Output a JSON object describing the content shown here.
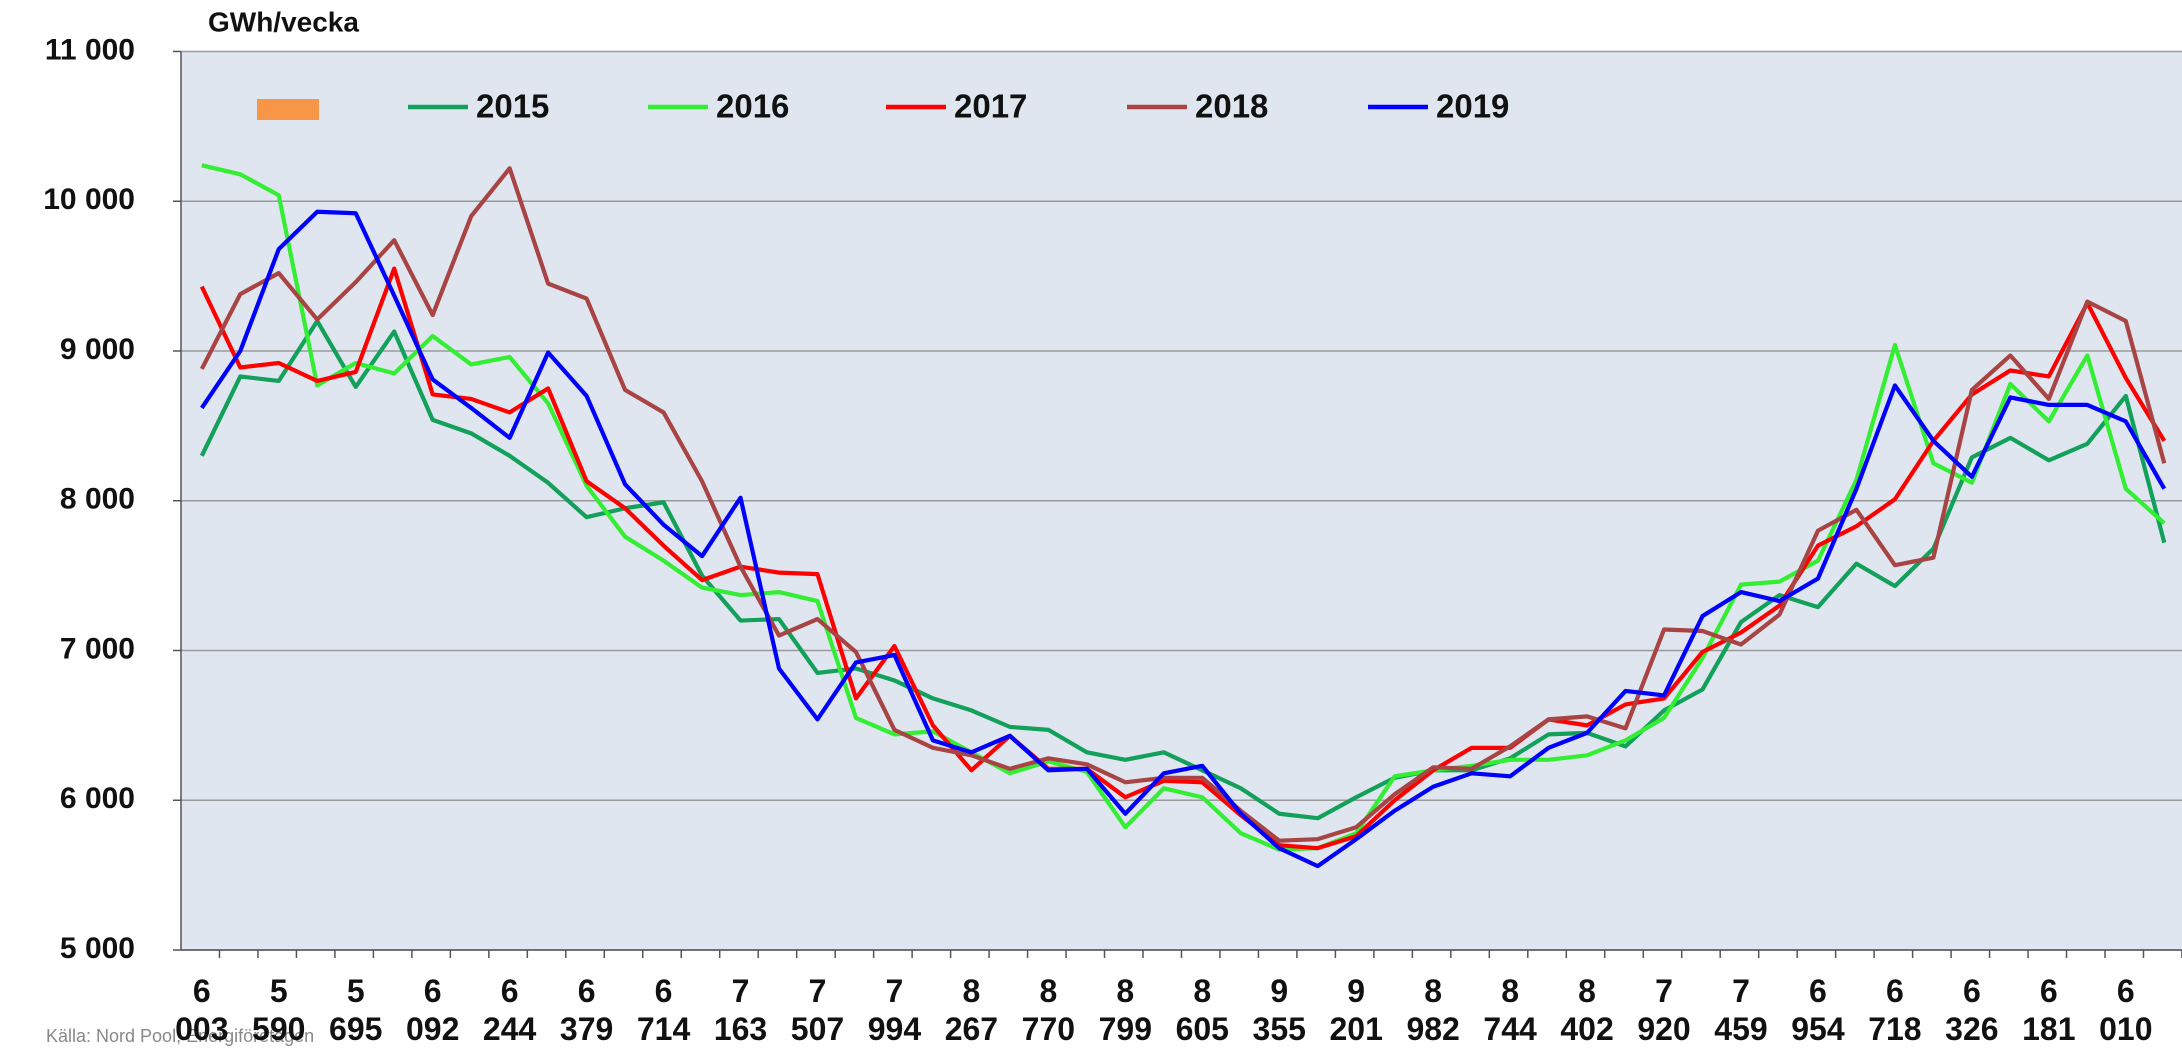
{
  "chart_data": {
    "type": "line",
    "y_label": "GWh/vecka",
    "source": "Källa: Nord Pool, Energiföretagen",
    "categories": [
      "6 003",
      null,
      "5 590",
      null,
      "5 695",
      null,
      "6 092",
      null,
      "6 244",
      null,
      "6 379",
      null,
      "6 714",
      null,
      "7 163",
      null,
      "7 507",
      null,
      "7 994",
      null,
      "8 267",
      null,
      "8 770",
      null,
      "8 799",
      null,
      "8 605",
      null,
      "9 355",
      null,
      "9 201",
      null,
      "8 982",
      null,
      "8 744",
      null,
      "8 402",
      null,
      "7 920",
      null,
      "7 459",
      null,
      "6 954",
      null,
      "6 718",
      null,
      "6 326",
      null,
      "6 181",
      null,
      "6 010",
      null
    ],
    "ylim": [
      5000,
      11000
    ],
    "yticks": [
      {
        "value": 5000,
        "label": "5 000"
      },
      {
        "value": 6000,
        "label": "6 000"
      },
      {
        "value": 7000,
        "label": "7 000"
      },
      {
        "value": 8000,
        "label": "8 000"
      },
      {
        "value": 9000,
        "label": "9 000"
      },
      {
        "value": 10000,
        "label": "10 000"
      },
      {
        "value": 11000,
        "label": "11 000"
      }
    ],
    "grid": true,
    "series": [
      {
        "name": "2015",
        "color": "#12a05a",
        "values": [
          8300,
          8830,
          8800,
          9200,
          8760,
          9130,
          8540,
          8450,
          8300,
          8120,
          7890,
          7950,
          7990,
          7500,
          7200,
          7210,
          6850,
          6880,
          6800,
          6680,
          6600,
          6490,
          6470,
          6320,
          6270,
          6320,
          6200,
          6080,
          5910,
          5880,
          6020,
          6150,
          6200,
          6200,
          6280,
          6440,
          6450,
          6360,
          6600,
          6740,
          7190,
          7370,
          7290,
          7580,
          7430,
          7680,
          8290,
          8420,
          8270,
          8380,
          8700,
          7720
        ]
      },
      {
        "name": "2016",
        "color": "#33ee33",
        "values": [
          10240,
          10180,
          10040,
          8770,
          8920,
          8850,
          9100,
          8910,
          8960,
          8650,
          8100,
          7760,
          7600,
          7420,
          7370,
          7390,
          7330,
          6550,
          6440,
          6460,
          6320,
          6180,
          6260,
          6190,
          5820,
          6080,
          6020,
          5780,
          5670,
          5680,
          5780,
          6160,
          6200,
          6230,
          6270,
          6270,
          6300,
          6400,
          6550,
          6950,
          7440,
          7460,
          7600,
          8140,
          9040,
          8250,
          8120,
          8780,
          8530,
          8970,
          8080,
          7850
        ]
      },
      {
        "name": "2017",
        "color": "#ff0000",
        "values": [
          9430,
          8890,
          8920,
          8800,
          8860,
          9550,
          8710,
          8680,
          8590,
          8750,
          8130,
          7950,
          7700,
          7470,
          7560,
          7520,
          7510,
          6680,
          7030,
          6500,
          6200,
          6430,
          6210,
          6210,
          6020,
          6130,
          6120,
          5900,
          5700,
          5680,
          5760,
          6000,
          6200,
          6350,
          6350,
          6540,
          6500,
          6640,
          6680,
          6990,
          7120,
          7300,
          7700,
          7830,
          8010,
          8400,
          8710,
          8870,
          8830,
          9320,
          8820,
          8400
        ]
      },
      {
        "name": "2018",
        "color": "#a84444",
        "values": [
          8880,
          9380,
          9520,
          9210,
          9460,
          9740,
          9240,
          9900,
          10220,
          9450,
          9350,
          8740,
          8590,
          8130,
          7560,
          7100,
          7210,
          6990,
          6470,
          6350,
          6300,
          6210,
          6280,
          6240,
          6120,
          6150,
          6150,
          5930,
          5730,
          5740,
          5820,
          6040,
          6220,
          6210,
          6360,
          6540,
          6560,
          6480,
          7140,
          7130,
          7040,
          7240,
          7800,
          7940,
          7570,
          7620,
          8740,
          8970,
          8680,
          9330,
          9200,
          8250
        ]
      },
      {
        "name": "2019",
        "color": "#0000ff",
        "values": [
          8620,
          9000,
          9680,
          9930,
          9920,
          9370,
          8810,
          8620,
          8420,
          8990,
          8700,
          8110,
          7840,
          7630,
          8020,
          6880,
          6540,
          6920,
          6970,
          6400,
          6320,
          6430,
          6200,
          6210,
          5910,
          6180,
          6230,
          5910,
          5680,
          5560,
          5740,
          5930,
          6090,
          6180,
          6160,
          6350,
          6450,
          6730,
          6700,
          7230,
          7390,
          7330,
          7480,
          8080,
          8770,
          8400,
          8160,
          8690,
          8640,
          8640,
          8530,
          8080
        ]
      }
    ]
  }
}
